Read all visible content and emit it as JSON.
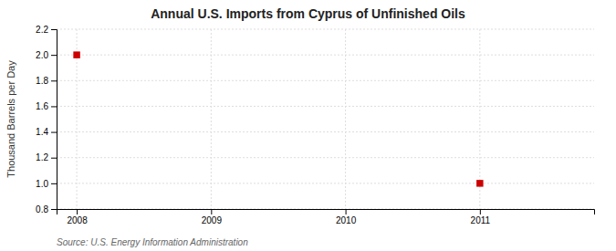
{
  "chart_data": {
    "type": "scatter",
    "title": "Annual U.S. Imports from Cyprus of Unfinished Oils",
    "y_label": "Thousand Barrels per Day",
    "source": "Source: U.S. Energy Information Administration",
    "x": [
      2008,
      2011
    ],
    "values": [
      2.0,
      1.0
    ],
    "color": "#cc0000",
    "marker": "square",
    "xlim": [
      2007.85,
      2011.85
    ],
    "xticks": [
      2008,
      2009,
      2010,
      2011
    ],
    "ylim": [
      0.8,
      2.2
    ],
    "yticks": [
      0.8,
      {
        "value": 1.0,
        "label": "1.0"
      },
      1.2,
      1.4,
      1.6,
      1.8,
      {
        "value": 2.0,
        "label": "2.0"
      },
      2.2
    ],
    "grid": true
  }
}
